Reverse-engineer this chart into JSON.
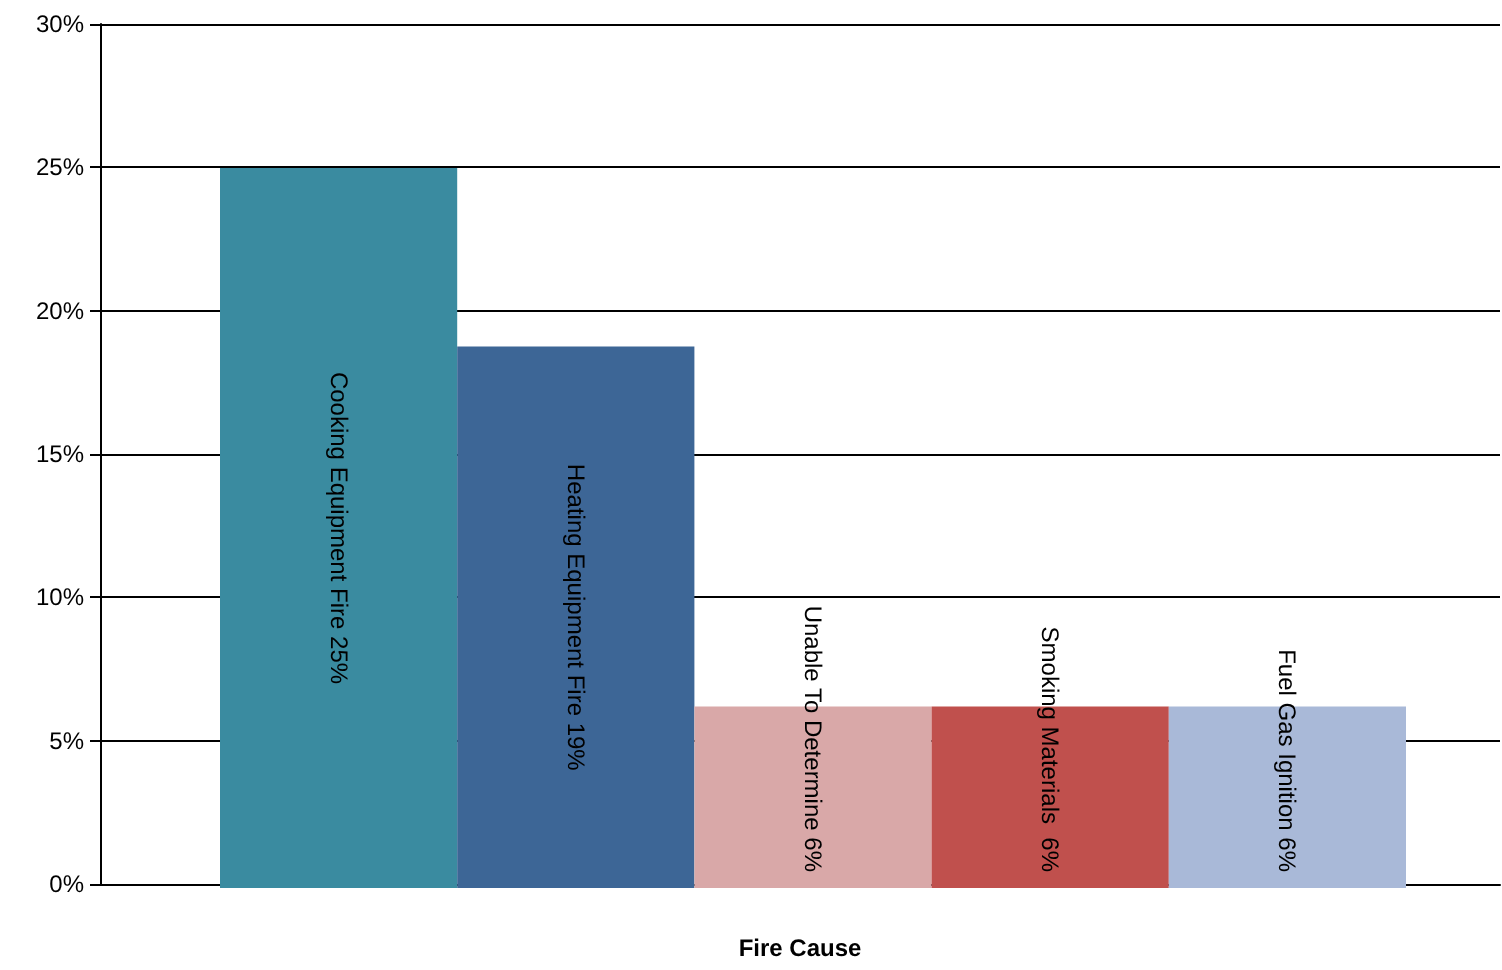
{
  "chart_data": {
    "type": "bar",
    "xlabel": "Fire Cause",
    "categories": [
      "Cooking Equipment Fire",
      "Heating Equipment Fire",
      "Unable To Determine",
      "Smoking Materials ",
      "Fuel Gas Ignition"
    ],
    "values": [
      25,
      18.8,
      6.3,
      6.3,
      6.3
    ],
    "value_labels": [
      "25%",
      "19%",
      "6%",
      "6%",
      "6%"
    ],
    "colors": [
      "#3a8ba0",
      "#3d6696",
      "#d9a8a8",
      "#c0504d",
      "#a9b9d8"
    ],
    "ylim": [
      0,
      30
    ],
    "yticks": [
      {
        "value": 0,
        "label": "0%"
      },
      {
        "value": 5,
        "label": "5%"
      },
      {
        "value": 10,
        "label": "10%"
      },
      {
        "value": 15,
        "label": "15%"
      },
      {
        "value": 20,
        "label": "20%"
      },
      {
        "value": 25,
        "label": "25%"
      },
      {
        "value": 30,
        "label": "30%"
      }
    ],
    "grid": "y"
  }
}
